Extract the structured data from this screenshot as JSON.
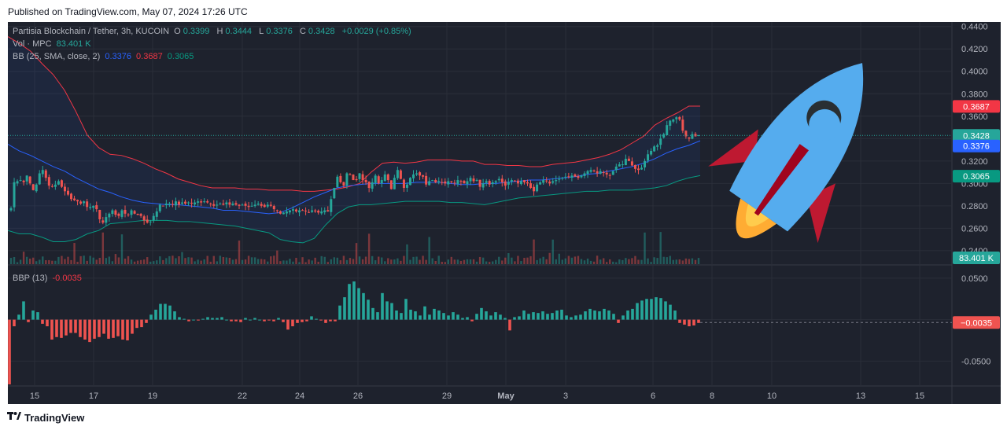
{
  "header": {
    "published": "Published on TradingView.com, May 07, 2024 17:26 UTC"
  },
  "footer": {
    "brand": "TradingView"
  },
  "legend": {
    "symbol": "Partisia Blockchain / Tether, 3h, KUCOIN",
    "o_label": "O",
    "o_val": "0.3399",
    "h_label": "H",
    "h_val": "0.3444",
    "l_label": "L",
    "l_val": "0.3376",
    "c_label": "C",
    "c_val": "0.3428",
    "change": "+0.0029 (+0.85%)",
    "vol_label": "Vol · MPC",
    "vol_val": "83.401 K",
    "bb_label": "BB (25, SMA, close, 2)",
    "bb_basis": "0.3376",
    "bb_upper": "0.3687",
    "bb_lower": "0.3065",
    "bbp_label": "BBP (13)",
    "bbp_val": "-0.0035"
  },
  "colors": {
    "up": "#26a69a",
    "down": "#ef5350",
    "basis": "#2962ff",
    "upper": "#f23645",
    "lower": "#089981",
    "background": "#1e222d"
  },
  "chart_data": [
    {
      "type": "candlestick",
      "title": "Partisia Blockchain / Tether, 3h, KUCOIN",
      "x_ticks": [
        "15",
        "17",
        "19",
        "22",
        "24",
        "26",
        "29",
        "May",
        "3",
        "6",
        "8",
        "10",
        "13",
        "15"
      ],
      "y_ticks": [
        "0.2400",
        "0.2600",
        "0.2800",
        "0.3000",
        "0.3200",
        "0.3400",
        "0.3600",
        "0.3800",
        "0.4000",
        "0.4200",
        "0.4400"
      ],
      "ylim": [
        0.228,
        0.444
      ],
      "last": {
        "open": 0.3399,
        "high": 0.3444,
        "low": 0.3376,
        "close": 0.3428,
        "change": "+0.0029 (+0.85%)"
      },
      "price_labels": {
        "close": "0.3428",
        "bb_upper": "0.3687",
        "bb_basis": "0.3376",
        "bb_lower": "0.3065",
        "volume": "83.401 K"
      },
      "close_series": [
        0.278,
        0.301,
        0.302,
        0.303,
        0.301,
        0.307,
        0.3,
        0.294,
        0.299,
        0.309,
        0.312,
        0.305,
        0.298,
        0.297,
        0.299,
        0.302,
        0.297,
        0.293,
        0.29,
        0.286,
        0.285,
        0.284,
        0.282,
        0.284,
        0.279,
        0.279,
        0.28,
        0.277,
        0.268,
        0.265,
        0.27,
        0.273,
        0.276,
        0.272,
        0.271,
        0.276,
        0.273,
        0.272,
        0.276,
        0.273,
        0.272,
        0.271,
        0.267,
        0.265,
        0.266,
        0.271,
        0.275,
        0.281,
        0.28,
        0.282,
        0.282,
        0.281,
        0.284,
        0.281,
        0.283,
        0.282,
        0.283,
        0.282,
        0.283,
        0.284,
        0.283,
        0.284,
        0.283,
        0.282,
        0.28,
        0.281,
        0.282,
        0.281,
        0.283,
        0.281,
        0.282,
        0.281,
        0.28,
        0.281,
        0.28,
        0.279,
        0.28,
        0.281,
        0.282,
        0.28,
        0.279,
        0.281,
        0.28,
        0.277,
        0.276,
        0.273,
        0.274,
        0.275,
        0.276,
        0.277,
        0.275,
        0.276,
        0.276,
        0.275,
        0.274,
        0.276,
        0.275,
        0.274,
        0.275,
        0.276,
        0.275,
        0.286,
        0.296,
        0.306,
        0.301,
        0.298,
        0.309,
        0.308,
        0.303,
        0.303,
        0.309,
        0.303,
        0.301,
        0.296,
        0.301,
        0.307,
        0.3,
        0.303,
        0.308,
        0.303,
        0.295,
        0.305,
        0.312,
        0.304,
        0.296,
        0.299,
        0.305,
        0.308,
        0.309,
        0.307,
        0.306,
        0.299,
        0.302,
        0.303,
        0.301,
        0.302,
        0.301,
        0.3,
        0.302,
        0.301,
        0.3,
        0.303,
        0.302,
        0.3,
        0.302,
        0.305,
        0.302,
        0.303,
        0.297,
        0.3,
        0.302,
        0.299,
        0.301,
        0.302,
        0.304,
        0.301,
        0.298,
        0.301,
        0.303,
        0.302,
        0.3,
        0.302,
        0.301,
        0.3,
        0.296,
        0.293,
        0.299,
        0.301,
        0.303,
        0.302,
        0.3,
        0.302,
        0.303,
        0.304,
        0.305,
        0.306,
        0.306,
        0.307,
        0.306,
        0.305,
        0.307,
        0.309,
        0.311,
        0.312,
        0.311,
        0.309,
        0.311,
        0.31,
        0.308,
        0.307,
        0.311,
        0.315,
        0.317,
        0.317,
        0.322,
        0.32,
        0.316,
        0.313,
        0.312,
        0.314,
        0.32,
        0.326,
        0.329,
        0.333,
        0.334,
        0.34,
        0.344,
        0.352,
        0.356,
        0.357,
        0.359,
        0.357,
        0.347,
        0.342,
        0.34,
        0.344,
        0.342,
        0.343
      ],
      "bb_upper_series": [
        0.431,
        0.425,
        0.418,
        0.407,
        0.397,
        0.383,
        0.364,
        0.343,
        0.332,
        0.326,
        0.325,
        0.322,
        0.318,
        0.313,
        0.309,
        0.304,
        0.301,
        0.298,
        0.296,
        0.296,
        0.296,
        0.295,
        0.295,
        0.294,
        0.294,
        0.294,
        0.293,
        0.293,
        0.294,
        0.295,
        0.297,
        0.3,
        0.31,
        0.318,
        0.319,
        0.318,
        0.319,
        0.321,
        0.321,
        0.321,
        0.32,
        0.32,
        0.317,
        0.317,
        0.316,
        0.316,
        0.315,
        0.315,
        0.317,
        0.318,
        0.319,
        0.321,
        0.323,
        0.326,
        0.33,
        0.336,
        0.342,
        0.352,
        0.358,
        0.363,
        0.369,
        0.369
      ],
      "bb_basis_series": [
        0.335,
        0.329,
        0.325,
        0.32,
        0.315,
        0.311,
        0.305,
        0.3,
        0.295,
        0.292,
        0.288,
        0.285,
        0.283,
        0.282,
        0.281,
        0.281,
        0.28,
        0.279,
        0.278,
        0.276,
        0.276,
        0.275,
        0.274,
        0.273,
        0.274,
        0.278,
        0.283,
        0.288,
        0.292,
        0.296,
        0.298,
        0.299,
        0.3,
        0.3,
        0.3,
        0.3,
        0.301,
        0.301,
        0.301,
        0.3,
        0.299,
        0.299,
        0.3,
        0.3,
        0.301,
        0.302,
        0.303,
        0.303,
        0.304,
        0.305,
        0.306,
        0.308,
        0.309,
        0.311,
        0.313,
        0.315,
        0.318,
        0.322,
        0.327,
        0.331,
        0.334,
        0.338
      ],
      "bb_lower_series": [
        0.258,
        0.255,
        0.255,
        0.252,
        0.248,
        0.248,
        0.25,
        0.255,
        0.258,
        0.264,
        0.265,
        0.266,
        0.267,
        0.267,
        0.267,
        0.266,
        0.266,
        0.265,
        0.264,
        0.263,
        0.262,
        0.26,
        0.258,
        0.256,
        0.25,
        0.248,
        0.247,
        0.251,
        0.263,
        0.273,
        0.279,
        0.281,
        0.281,
        0.282,
        0.283,
        0.284,
        0.284,
        0.284,
        0.284,
        0.283,
        0.283,
        0.282,
        0.281,
        0.283,
        0.285,
        0.287,
        0.288,
        0.289,
        0.29,
        0.291,
        0.292,
        0.293,
        0.293,
        0.294,
        0.294,
        0.294,
        0.295,
        0.296,
        0.298,
        0.302,
        0.305,
        0.307
      ],
      "volume_ylim": [
        0,
        100
      ]
    },
    {
      "type": "bar",
      "title": "BBP (13)",
      "y_ticks": [
        "0.0500",
        "0.0000",
        "-0.0500"
      ],
      "ylim": [
        -0.079,
        0.065
      ],
      "last": -0.0035,
      "values": [
        -0.078,
        -0.008,
        0.006,
        0.022,
        -0.003,
        0.011,
        0.009,
        -0.005,
        -0.008,
        -0.024,
        -0.021,
        -0.022,
        -0.019,
        -0.016,
        -0.016,
        -0.021,
        -0.024,
        -0.027,
        -0.023,
        -0.021,
        -0.017,
        -0.023,
        -0.022,
        -0.02,
        -0.024,
        -0.025,
        -0.017,
        -0.01,
        -0.009,
        -0.004,
        0.006,
        0.012,
        0.019,
        0.019,
        0.017,
        0.01,
        0.003,
        0.001,
        -0.002,
        0.0,
        -0.001,
        0.001,
        0.003,
        0.002,
        0.002,
        0.003,
        0.0,
        -0.002,
        -0.002,
        -0.003,
        0.002,
        0.0,
        0.002,
        0.0,
        -0.002,
        -0.001,
        -0.002,
        0.002,
        -0.003,
        -0.012,
        -0.008,
        -0.004,
        -0.003,
        -0.002,
        0.004,
        0.001,
        -0.001,
        -0.004,
        -0.002,
        -0.002,
        0.017,
        0.027,
        0.043,
        0.046,
        0.038,
        0.032,
        0.024,
        0.014,
        0.009,
        0.032,
        0.022,
        0.02,
        0.011,
        0.008,
        0.025,
        0.012,
        0.01,
        0.005,
        0.016,
        0.006,
        0.013,
        0.011,
        0.008,
        0.005,
        0.009,
        0.006,
        0.002,
        0.003,
        -0.002,
        0.007,
        0.014,
        0.01,
        0.005,
        0.009,
        0.006,
        0.002,
        -0.013,
        0.003,
        0.004,
        0.011,
        0.007,
        0.009,
        0.008,
        0.01,
        0.007,
        0.008,
        0.011,
        0.012,
        0.005,
        0.003,
        0.005,
        0.006,
        0.01,
        0.013,
        0.011,
        0.01,
        0.013,
        0.011,
        0.007,
        -0.004,
        0.005,
        0.011,
        0.013,
        0.02,
        0.023,
        0.025,
        0.025,
        0.027,
        0.026,
        0.022,
        0.018,
        0.011,
        -0.004,
        -0.006,
        -0.008,
        -0.007,
        -0.004
      ]
    }
  ]
}
